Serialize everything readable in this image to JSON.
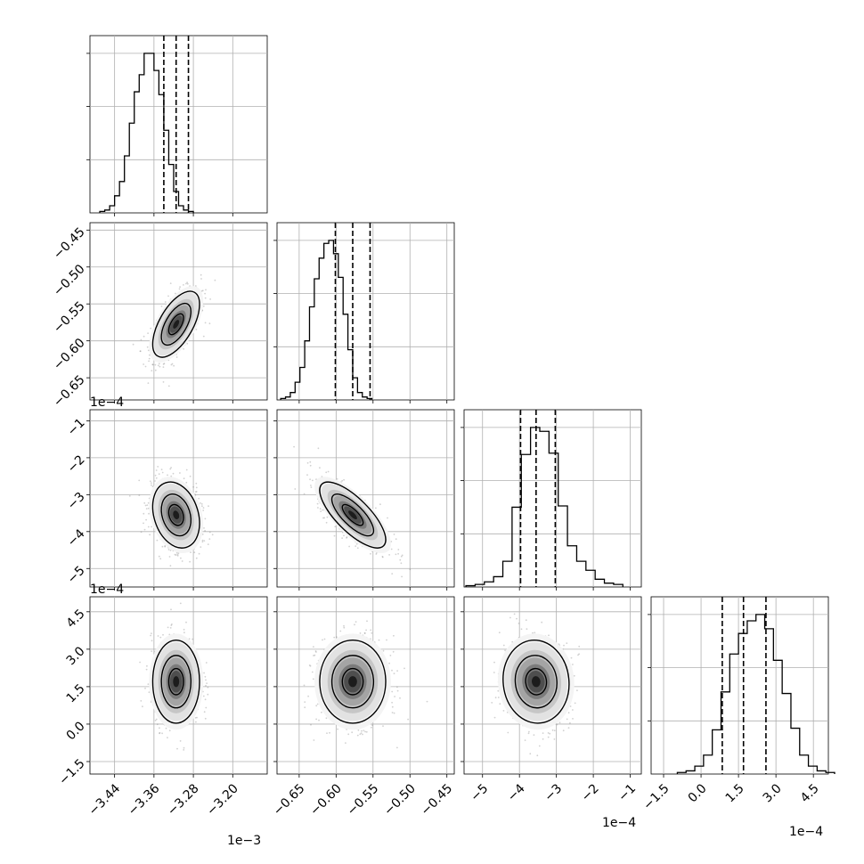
{
  "chart_data": {
    "type": "corner",
    "grid": true,
    "parameters": [
      {
        "multiplier_label": "1e−3",
        "axis_range": [
          -3.49,
          -3.13
        ],
        "ticks": [
          -3.44,
          -3.36,
          -3.28,
          -3.2
        ],
        "tick_labels": [
          "−3.44",
          "−3.36",
          "−3.28",
          "−3.20"
        ],
        "quantile_lines": [
          -3.34,
          -3.315,
          -3.29
        ],
        "histogram": {
          "start": -3.47,
          "bin_width": 0.01,
          "counts": [
            1,
            2,
            5,
            12,
            22,
            40,
            63,
            85,
            97,
            112,
            112,
            100,
            83,
            58,
            34,
            15,
            5,
            2,
            1
          ]
        }
      },
      {
        "multiplier_label": "1e−4",
        "axis_range": [
          -0.68,
          -0.44
        ],
        "ticks": [
          -0.65,
          -0.6,
          -0.55,
          -0.5,
          -0.45
        ],
        "tick_labels": [
          "−0.65",
          "−0.60",
          "−0.55",
          "−0.50",
          "−0.45"
        ],
        "quantile_lines": [
          -0.601,
          -0.5775,
          -0.554
        ],
        "histogram": {
          "start": -0.675,
          "bin_width": 0.0065,
          "counts": [
            1,
            2,
            5,
            12,
            22,
            40,
            63,
            82,
            96,
            106,
            108,
            99,
            83,
            58,
            34,
            15,
            5,
            2,
            1
          ]
        }
      },
      {
        "multiplier_label": "1e−4",
        "axis_range": [
          -5.5,
          -0.7
        ],
        "ticks": [
          -5,
          -4,
          -3,
          -2,
          -1
        ],
        "tick_labels": [
          "−5",
          "−4",
          "−3",
          "−2",
          "−1"
        ],
        "quantile_lines": [
          -3.97,
          -3.55,
          -3.03
        ],
        "histogram": {
          "start": -5.45,
          "bin_width": 0.25,
          "counts": [
            1,
            2,
            4,
            8,
            20,
            62,
            103,
            124,
            121,
            104,
            63,
            32,
            20,
            13,
            6,
            3,
            2
          ]
        }
      },
      {
        "multiplier_label": "1e−4",
        "axis_range": [
          -2.0,
          5.1
        ],
        "ticks": [
          -1.5,
          0.0,
          1.5,
          3.0,
          4.5
        ],
        "tick_labels": [
          "−1.5",
          "0.0",
          "1.5",
          "3.0",
          "4.5"
        ],
        "quantile_lines": [
          0.85,
          1.7,
          2.6
        ],
        "histogram": {
          "start": -0.95,
          "bin_width": 0.35,
          "counts": [
            1,
            2,
            5,
            12,
            28,
            52,
            76,
            89,
            97,
            101,
            92,
            72,
            51,
            29,
            12,
            5,
            2,
            1
          ]
        }
      }
    ],
    "pairs": [
      {
        "x": 0,
        "y": 1,
        "correlation": 0.6
      },
      {
        "x": 0,
        "y": 2,
        "correlation": -0.25
      },
      {
        "x": 1,
        "y": 2,
        "correlation": -0.75
      },
      {
        "x": 0,
        "y": 3,
        "correlation": 0.0
      },
      {
        "x": 1,
        "y": 3,
        "correlation": 0.0
      },
      {
        "x": 2,
        "y": 3,
        "correlation": -0.05
      }
    ]
  }
}
